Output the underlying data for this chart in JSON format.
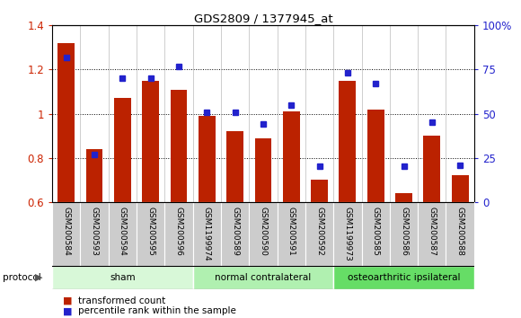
{
  "title": "GDS2809 / 1377945_at",
  "samples": [
    "GSM200584",
    "GSM200593",
    "GSM200594",
    "GSM200595",
    "GSM200596",
    "GSM1199974",
    "GSM200589",
    "GSM200590",
    "GSM200591",
    "GSM200592",
    "GSM1199973",
    "GSM200585",
    "GSM200586",
    "GSM200587",
    "GSM200588"
  ],
  "transformed_count": [
    1.32,
    0.84,
    1.07,
    1.15,
    1.11,
    0.99,
    0.92,
    0.89,
    1.01,
    0.7,
    1.15,
    1.02,
    0.64,
    0.9,
    0.72
  ],
  "percentile_rank": [
    82,
    27,
    70,
    70,
    77,
    51,
    51,
    44,
    55,
    20,
    73,
    67,
    20,
    45,
    21
  ],
  "groups": [
    {
      "label": "sham",
      "start": 0,
      "end": 5
    },
    {
      "label": "normal contralateral",
      "start": 5,
      "end": 10
    },
    {
      "label": "osteoarthritic ipsilateral",
      "start": 10,
      "end": 15
    }
  ],
  "group_colors": [
    "#d8f8d8",
    "#b0f0b0",
    "#66dd66"
  ],
  "ylim_left": [
    0.6,
    1.4
  ],
  "ylim_right": [
    0,
    100
  ],
  "yticks_left": [
    0.6,
    0.8,
    1.0,
    1.2,
    1.4
  ],
  "yticks_right": [
    0,
    25,
    50,
    75,
    100
  ],
  "ytick_labels_right": [
    "0",
    "25",
    "50",
    "75",
    "100%"
  ],
  "bar_color": "#bb2200",
  "dot_color": "#2222cc",
  "bar_width": 0.6,
  "legend_items": [
    {
      "label": "transformed count",
      "color": "#bb2200"
    },
    {
      "label": "percentile rank within the sample",
      "color": "#2222cc"
    }
  ],
  "bg_color": "#ffffff",
  "sample_label_bg": "#cccccc",
  "figsize": [
    5.8,
    3.54
  ],
  "dpi": 100
}
